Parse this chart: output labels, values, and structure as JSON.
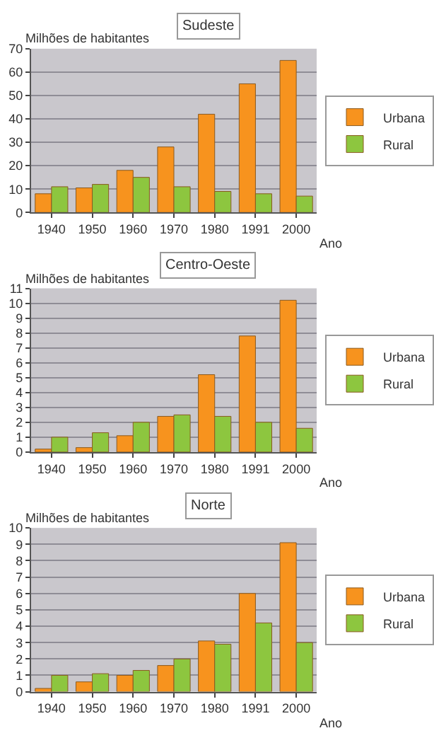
{
  "chart_data": [
    {
      "type": "bar",
      "title": "Sudeste",
      "ylabel": "Milhões de habitantes",
      "xlabel": "Ano",
      "categories": [
        "1940",
        "1950",
        "1960",
        "1970",
        "1980",
        "1991",
        "2000"
      ],
      "series": [
        {
          "name": "Urbana",
          "color": "#f7931e",
          "values": [
            8,
            10.5,
            18,
            28,
            42,
            55,
            65
          ]
        },
        {
          "name": "Rural",
          "color": "#8dc63f",
          "values": [
            11,
            12,
            15,
            11,
            9,
            8,
            7
          ]
        }
      ],
      "ylim": [
        0,
        70
      ],
      "yticks": [
        0,
        10,
        20,
        30,
        40,
        50,
        60,
        70
      ],
      "grid": "y",
      "legend": "right"
    },
    {
      "type": "bar",
      "title": "Centro-Oeste",
      "ylabel": "Milhões de habitantes",
      "xlabel": "Ano",
      "categories": [
        "1940",
        "1950",
        "1960",
        "1970",
        "1980",
        "1991",
        "2000"
      ],
      "series": [
        {
          "name": "Urbana",
          "color": "#f7931e",
          "values": [
            0.2,
            0.3,
            1.1,
            2.4,
            5.2,
            7.8,
            10.2
          ]
        },
        {
          "name": "Rural",
          "color": "#8dc63f",
          "values": [
            1.0,
            1.3,
            2.0,
            2.5,
            2.4,
            2.0,
            1.6
          ]
        }
      ],
      "ylim": [
        0,
        11
      ],
      "yticks": [
        0,
        1,
        2,
        3,
        4,
        5,
        6,
        7,
        8,
        9,
        10,
        11
      ],
      "grid": "y",
      "legend": "right"
    },
    {
      "type": "bar",
      "title": "Norte",
      "ylabel": "Milhões de habitantes",
      "xlabel": "Ano",
      "categories": [
        "1940",
        "1950",
        "1960",
        "1970",
        "1980",
        "1991",
        "2000"
      ],
      "series": [
        {
          "name": "Urbana",
          "color": "#f7931e",
          "values": [
            0.2,
            0.6,
            1.0,
            1.6,
            3.1,
            6.0,
            9.1
          ]
        },
        {
          "name": "Rural",
          "color": "#8dc63f",
          "values": [
            1.0,
            1.1,
            1.3,
            2.0,
            2.9,
            4.2,
            3.0
          ]
        }
      ],
      "ylim": [
        0,
        10
      ],
      "yticks": [
        0,
        1,
        2,
        3,
        4,
        5,
        6,
        7,
        8,
        9,
        10
      ],
      "grid": "y",
      "legend": "right"
    }
  ]
}
